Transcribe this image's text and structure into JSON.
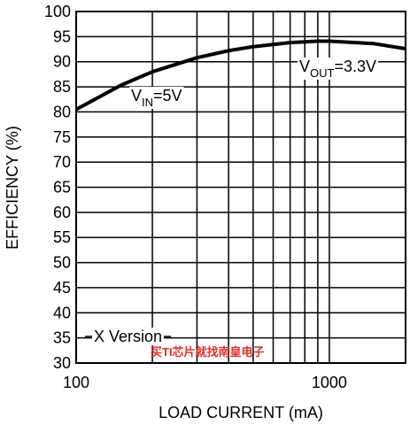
{
  "chart_data": {
    "type": "line",
    "xlabel": "LOAD CURRENT (mA)",
    "ylabel": "EFFICIENCY (%)",
    "xscale": "log",
    "xlim": [
      100,
      2000
    ],
    "xticks": [
      100,
      1000
    ],
    "x_minor_grid": [
      200,
      300,
      400,
      500,
      600,
      700,
      800,
      900
    ],
    "ylim": [
      30,
      100
    ],
    "yticks": [
      30,
      35,
      40,
      45,
      50,
      55,
      60,
      65,
      70,
      75,
      80,
      85,
      90,
      95,
      100
    ],
    "grid": true,
    "series": [
      {
        "color": "#000000",
        "x": [
          100,
          150,
          200,
          300,
          400,
          500,
          700,
          900,
          1000,
          1500,
          2000
        ],
        "values": [
          80.5,
          85.3,
          88.0,
          90.8,
          92.2,
          93.0,
          93.8,
          94.1,
          94.1,
          93.6,
          92.6
        ]
      }
    ],
    "annotations": [
      {
        "main": "V",
        "sub": "IN",
        "rest": "=5V"
      },
      {
        "main": "V",
        "sub": "OUT",
        "rest": "=3.3V"
      },
      {
        "main": "X Version"
      }
    ],
    "watermark": "买TI芯片就找南皇电子"
  }
}
